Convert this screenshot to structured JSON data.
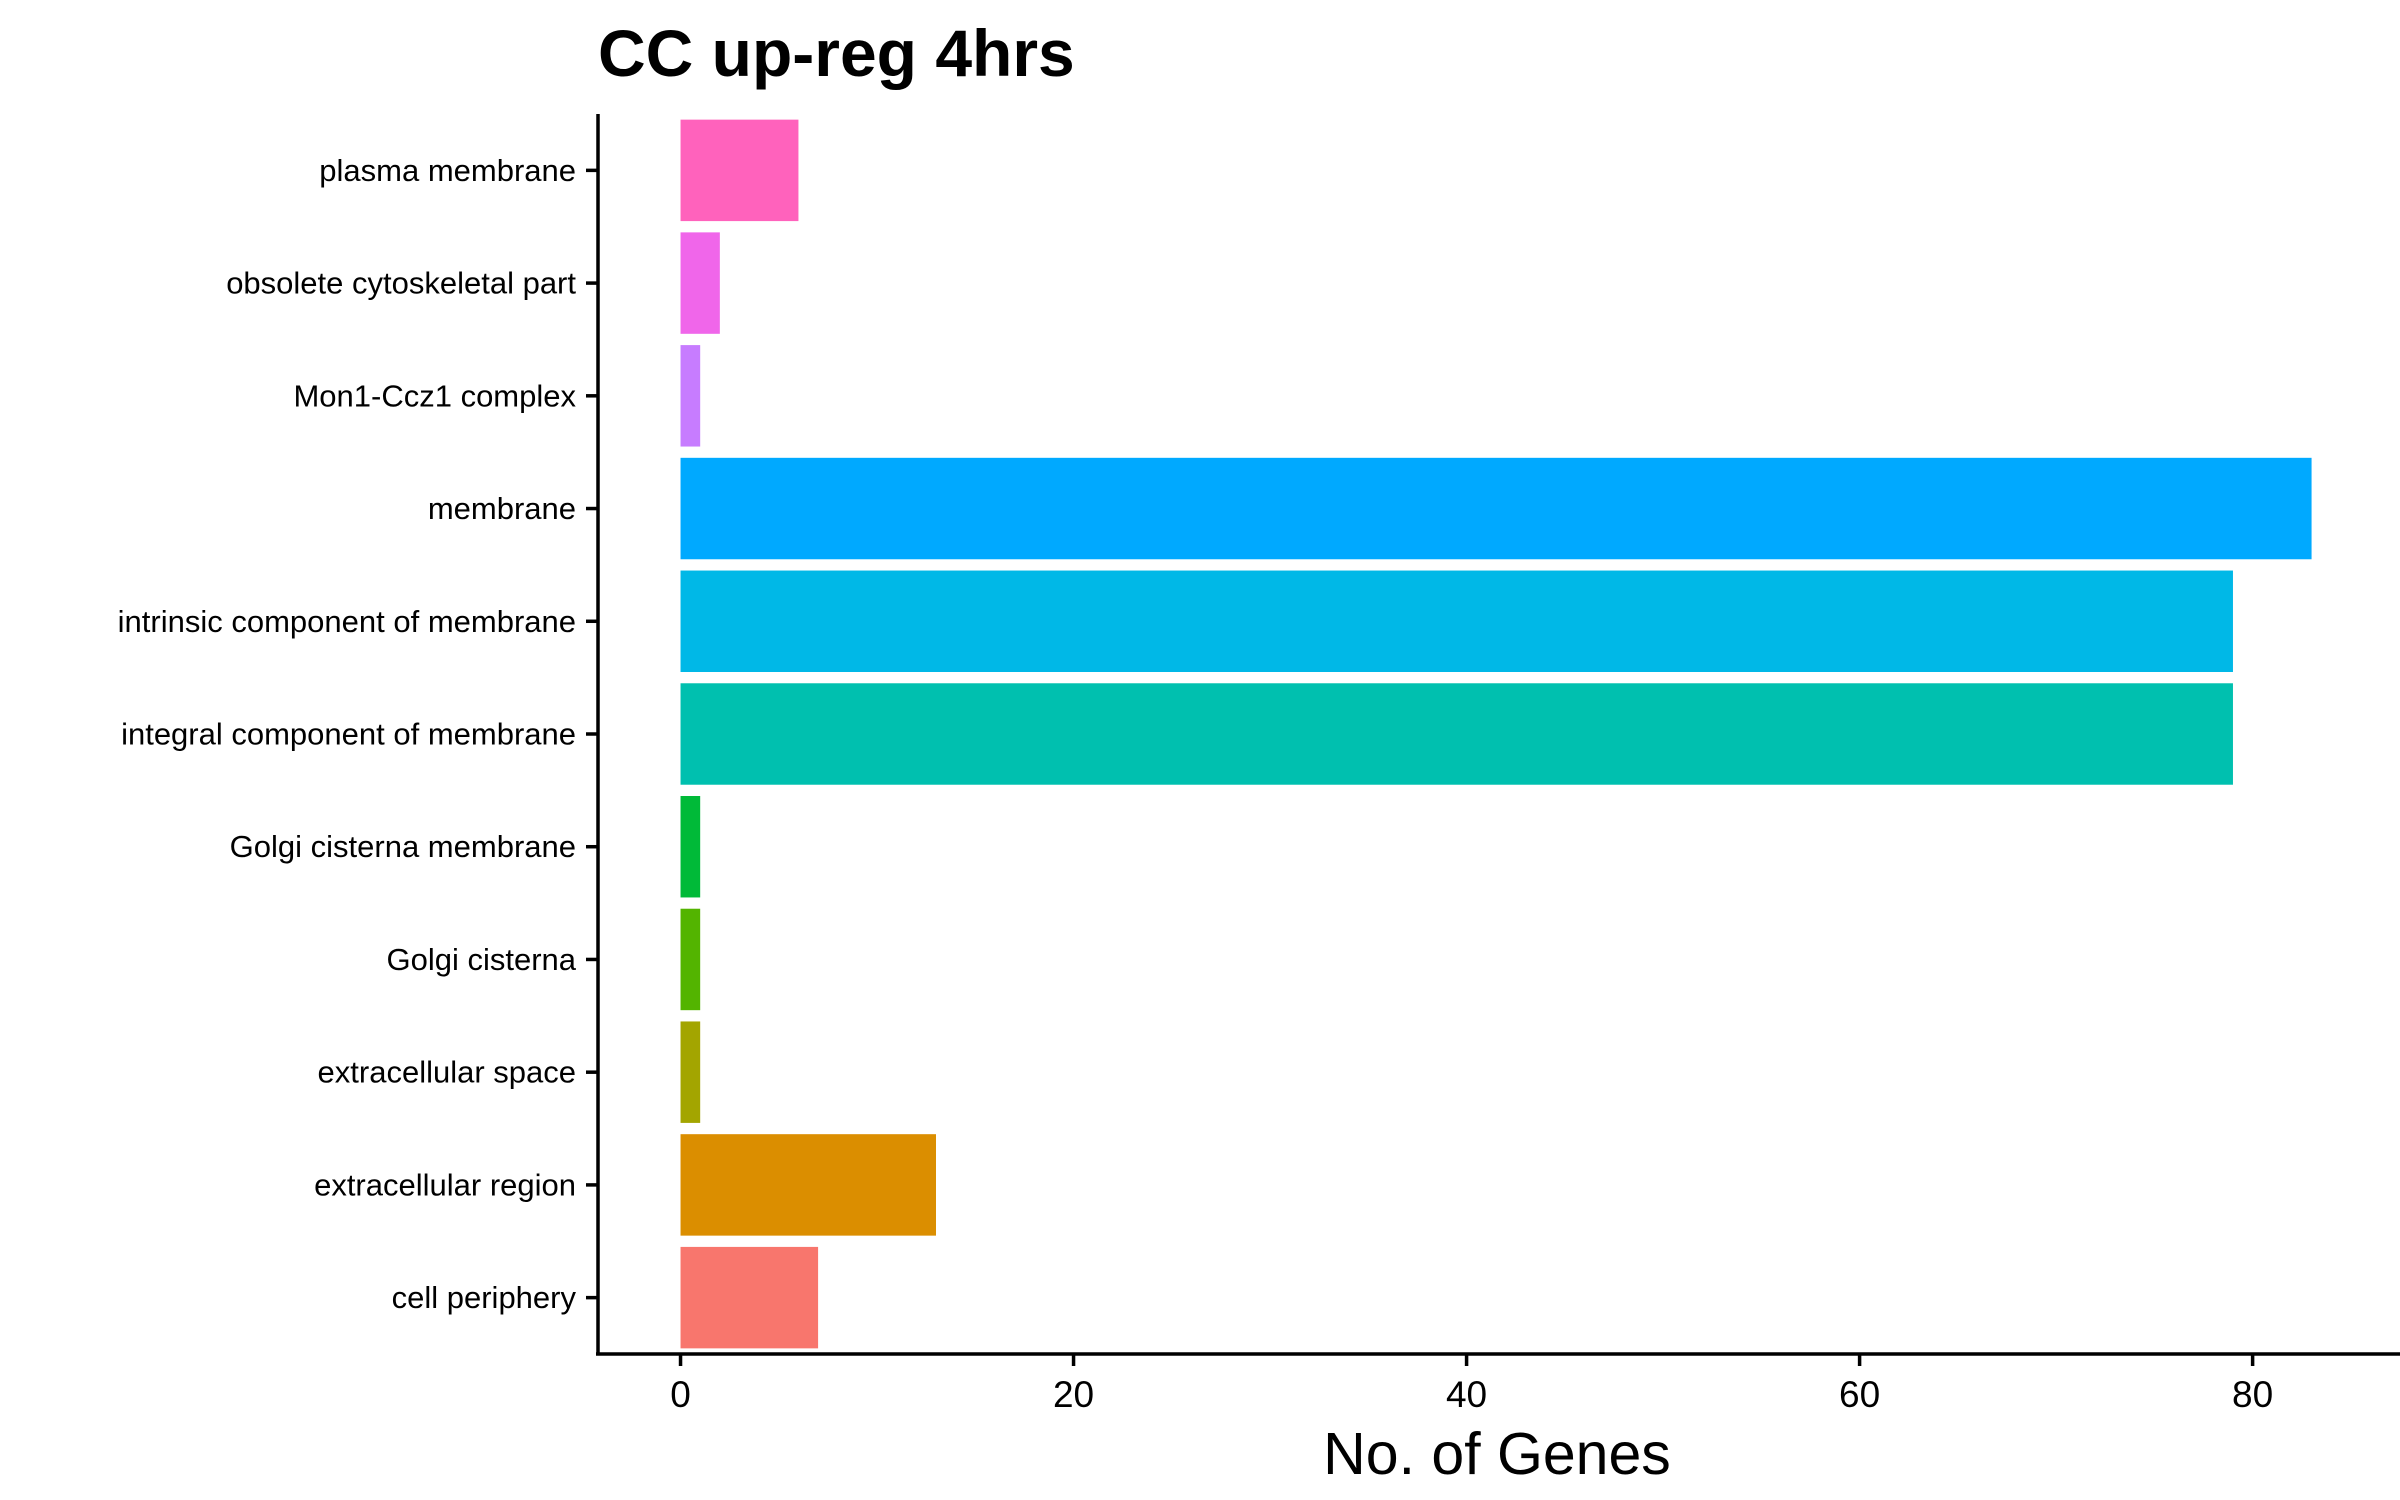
{
  "chart_data": {
    "type": "bar",
    "orientation": "horizontal",
    "title": "CC up-reg 4hrs",
    "xlabel": "No. of Genes",
    "ylabel": "",
    "xlim": [
      -4.2,
      87.5
    ],
    "xticks": [
      0,
      20,
      40,
      60,
      80
    ],
    "grid": false,
    "legend": "none",
    "categories": [
      "plasma membrane",
      "obsolete cytoskeletal part",
      "Mon1-Ccz1 complex",
      "membrane",
      "intrinsic component of membrane",
      "integral component of membrane",
      "Golgi cisterna membrane",
      "Golgi cisterna",
      "extracellular space",
      "extracellular region",
      "cell periphery"
    ],
    "values": [
      6,
      2,
      1,
      83,
      79,
      79,
      1,
      1,
      1,
      13,
      7
    ],
    "colors": [
      "#FF62BC",
      "#F066EA",
      "#C77CFF",
      "#00A9FF",
      "#00B8E7",
      "#00C0AF",
      "#00BA38",
      "#53B400",
      "#A3A500",
      "#DB8E00",
      "#F8766D"
    ]
  }
}
